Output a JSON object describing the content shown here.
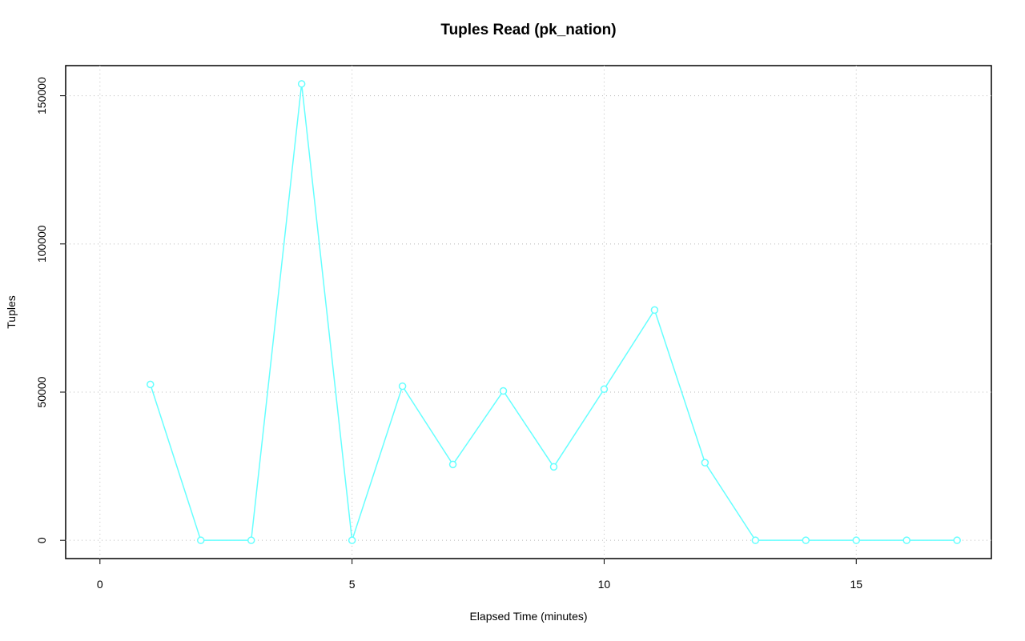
{
  "chart_data": {
    "type": "line",
    "title": "Tuples Read (pk_nation)",
    "x_label": "Elapsed Time (minutes)",
    "y_label": "Tuples",
    "x": [
      1,
      2,
      3,
      4,
      5,
      6,
      7,
      8,
      9,
      10,
      11,
      12,
      13,
      14,
      15,
      16,
      17
    ],
    "series": [
      {
        "name": "pk_nation",
        "color": "#66ffff",
        "values": [
          52600,
          0,
          0,
          154000,
          0,
          52000,
          25600,
          50400,
          24800,
          51000,
          77700,
          26200,
          0,
          0,
          0,
          0,
          0
        ]
      }
    ],
    "xlim": [
      -0.68,
      17.68
    ],
    "ylim": [
      -6160,
      160160
    ],
    "xticks": [
      0,
      5,
      10,
      15
    ],
    "yticks": [
      0,
      50000,
      100000,
      150000
    ],
    "grid": true
  }
}
